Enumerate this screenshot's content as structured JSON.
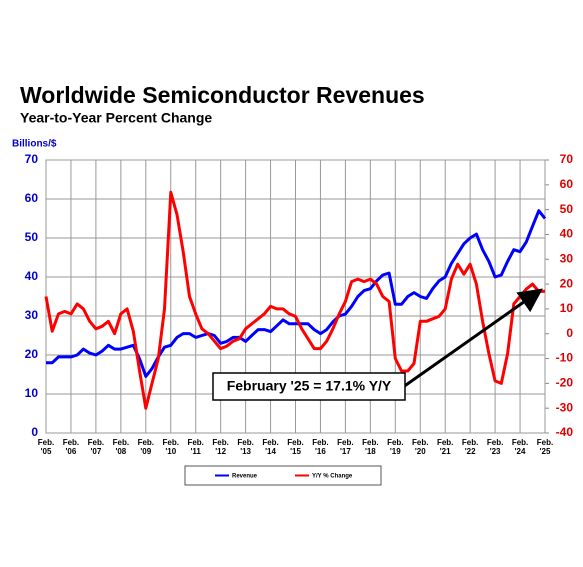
{
  "chart_data": {
    "type": "line",
    "title": "Worldwide Semiconductor Revenues",
    "subtitle": "Year-to-Year Percent Change",
    "y_label": "Billions/$",
    "annotation": "February '25 = 17.1% Y/Y",
    "x": [
      0,
      3,
      6,
      9,
      12,
      15,
      18,
      21,
      24,
      27,
      30,
      33,
      36,
      39,
      42,
      45,
      48,
      51,
      54,
      57,
      60,
      63,
      66,
      69,
      72,
      75,
      78,
      81,
      84,
      87,
      90,
      93,
      96,
      99,
      102,
      105,
      108,
      111,
      114,
      117,
      120,
      123,
      126,
      129,
      132,
      135,
      138,
      141,
      144,
      147,
      150,
      153,
      156,
      159,
      162,
      165,
      168,
      171,
      174,
      177,
      180,
      183,
      186,
      189,
      192,
      195,
      198,
      201,
      204,
      207,
      210,
      213,
      216,
      219,
      222,
      225,
      228,
      231,
      234,
      237,
      240
    ],
    "xlim": [
      0,
      240
    ],
    "xticks": [
      {
        "value": 0,
        "label": "Feb. '05"
      },
      {
        "value": 12,
        "label": "Feb. '06"
      },
      {
        "value": 24,
        "label": "Feb. '07"
      },
      {
        "value": 36,
        "label": "Feb. '08"
      },
      {
        "value": 48,
        "label": "Feb. '09"
      },
      {
        "value": 60,
        "label": "Feb. '10"
      },
      {
        "value": 72,
        "label": "Feb. '11"
      },
      {
        "value": 84,
        "label": "Feb. '12"
      },
      {
        "value": 96,
        "label": "Feb. '13"
      },
      {
        "value": 108,
        "label": "Feb. '14"
      },
      {
        "value": 120,
        "label": "Feb. '15"
      },
      {
        "value": 132,
        "label": "Feb. '16"
      },
      {
        "value": 144,
        "label": "Feb. '17"
      },
      {
        "value": 156,
        "label": "Feb. '18"
      },
      {
        "value": 168,
        "label": "Feb. '19"
      },
      {
        "value": 180,
        "label": "Feb. '20"
      },
      {
        "value": 192,
        "label": "Feb. '21"
      },
      {
        "value": 204,
        "label": "Feb. '22"
      },
      {
        "value": 216,
        "label": "Feb. '23"
      },
      {
        "value": 228,
        "label": "Feb. '24"
      },
      {
        "value": 240,
        "label": "Feb. '25"
      }
    ],
    "ylim": [
      0,
      70
    ],
    "yticks": [
      0,
      10,
      20,
      30,
      40,
      50,
      60,
      70
    ],
    "y2lim": [
      -40,
      70
    ],
    "y2ticks": [
      -40,
      -30,
      -20,
      -10,
      0,
      10,
      20,
      30,
      40,
      50,
      60,
      70
    ],
    "grid": true,
    "series": [
      {
        "name": "Revenue",
        "color": "#0000ff",
        "values": [
          18,
          18,
          19.5,
          19.5,
          19.5,
          20,
          21.5,
          20.5,
          20,
          21,
          22.5,
          21.5,
          21.5,
          22,
          22.5,
          19,
          14.5,
          16.5,
          19.5,
          22,
          22.5,
          24.5,
          25.5,
          25.5,
          24.5,
          25,
          25.5,
          25,
          23,
          23.5,
          24.5,
          24.5,
          23.5,
          25,
          26.5,
          26.5,
          26,
          27.5,
          29,
          28,
          28,
          28,
          28,
          26.5,
          25.5,
          26.5,
          28.5,
          30,
          30.5,
          32.5,
          35,
          36.5,
          37,
          39,
          40.5,
          41,
          33,
          33,
          35,
          36,
          35,
          34.5,
          37,
          39,
          40,
          43.5,
          46,
          48.5,
          50,
          51,
          47,
          44,
          40,
          40.5,
          44,
          47,
          46.5,
          49,
          53,
          57,
          55
        ]
      },
      {
        "name": "Y/Y % Change",
        "color": "#ff0000",
        "axis": "y2",
        "values": [
          15,
          1,
          8,
          9,
          8,
          12,
          10,
          5,
          2,
          3,
          5,
          0,
          8,
          10,
          1,
          -15,
          -30,
          -20,
          -10,
          10,
          57,
          48,
          33,
          15,
          8,
          2,
          0,
          -3,
          -6,
          -5,
          -3,
          -2,
          2,
          4,
          6,
          8,
          11,
          10,
          10,
          8,
          7,
          2,
          -2,
          -6,
          -6,
          -3,
          2,
          8,
          13,
          21,
          22,
          21,
          22,
          20,
          15,
          13,
          -10,
          -15,
          -15,
          -12,
          5,
          5,
          6,
          7,
          10,
          22,
          28,
          24,
          28,
          20,
          5,
          -8,
          -19,
          -20,
          -8,
          12,
          15,
          18,
          20,
          17,
          17.1
        ]
      }
    ]
  }
}
